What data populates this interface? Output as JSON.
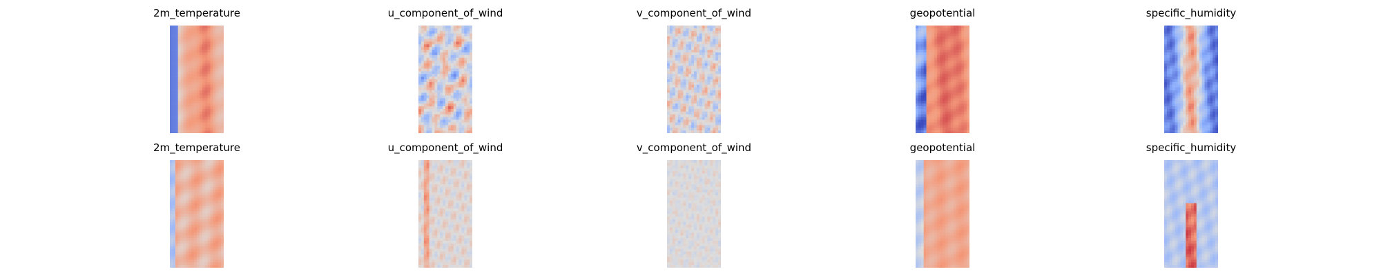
{
  "chart_data": {
    "type": "heatmap",
    "colormap": "coolwarm",
    "colors": {
      "low": "#3b4cc0",
      "mid": "#dddddd",
      "high": "#b40426"
    },
    "axes_visible": false,
    "grid": false,
    "rows": [
      {
        "panels": [
          {
            "title": "2m_temperature",
            "pattern": "temp_fc"
          },
          {
            "title": "u_component_of_wind",
            "pattern": "u_fc"
          },
          {
            "title": "v_component_of_wind",
            "pattern": "v_fc"
          },
          {
            "title": "geopotential",
            "pattern": "geo_fc"
          },
          {
            "title": "specific_humidity",
            "pattern": "hum_fc"
          }
        ]
      },
      {
        "panels": [
          {
            "title": "2m_temperature",
            "pattern": "temp_err"
          },
          {
            "title": "u_component_of_wind",
            "pattern": "u_err"
          },
          {
            "title": "v_component_of_wind",
            "pattern": "v_err"
          },
          {
            "title": "geopotential",
            "pattern": "geo_err"
          },
          {
            "title": "specific_humidity",
            "pattern": "hum_err"
          }
        ]
      }
    ]
  }
}
